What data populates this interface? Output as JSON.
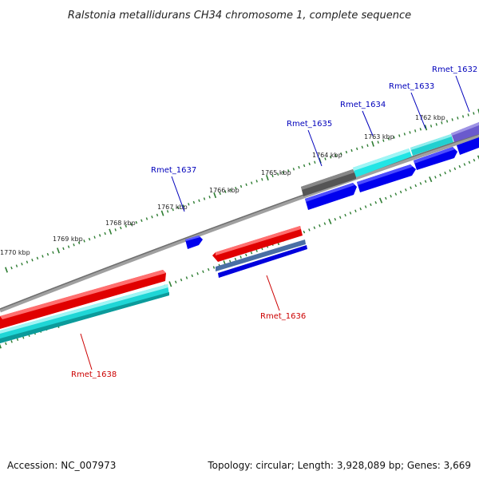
{
  "title": "Ralstonia metallidurans CH34 chromosome 1, complete sequence",
  "footer": {
    "accession": "Accession: NC_007973",
    "topology": "Topology: circular; Length: 3,928,089 bp; Genes: 3,669"
  },
  "colors": {
    "backbone": "#8a8a8a",
    "tick": "#2e7d32",
    "label_forward": "#0000bb",
    "label_reverse": "#cc0000",
    "gene_red": "#ee0000",
    "gene_cyan": "#22e5e5",
    "gene_blue": "#0000ee",
    "gene_gray": "#555555",
    "gene_purple": "#6a5acd",
    "gene_steel": "#4a6fa5"
  },
  "outer_ticks": [
    {
      "label": "1770 kbp"
    },
    {
      "label": "1769 kbp"
    },
    {
      "label": "1768 kbp"
    },
    {
      "label": "1767 kbp"
    },
    {
      "label": "1766 kbp"
    },
    {
      "label": "1765 kbp"
    },
    {
      "label": "1764 kbp"
    },
    {
      "label": "1763 kbp"
    },
    {
      "label": "1762 kbp"
    }
  ],
  "gene_labels": [
    {
      "text": "Rmet_1632",
      "strand": "forward"
    },
    {
      "text": "Rmet_1633",
      "strand": "forward"
    },
    {
      "text": "Rmet_1634",
      "strand": "forward"
    },
    {
      "text": "Rmet_1635",
      "strand": "forward"
    },
    {
      "text": "Rmet_1637",
      "strand": "forward"
    },
    {
      "text": "Rmet_1636",
      "strand": "reverse"
    },
    {
      "text": "Rmet_1638",
      "strand": "reverse"
    }
  ]
}
